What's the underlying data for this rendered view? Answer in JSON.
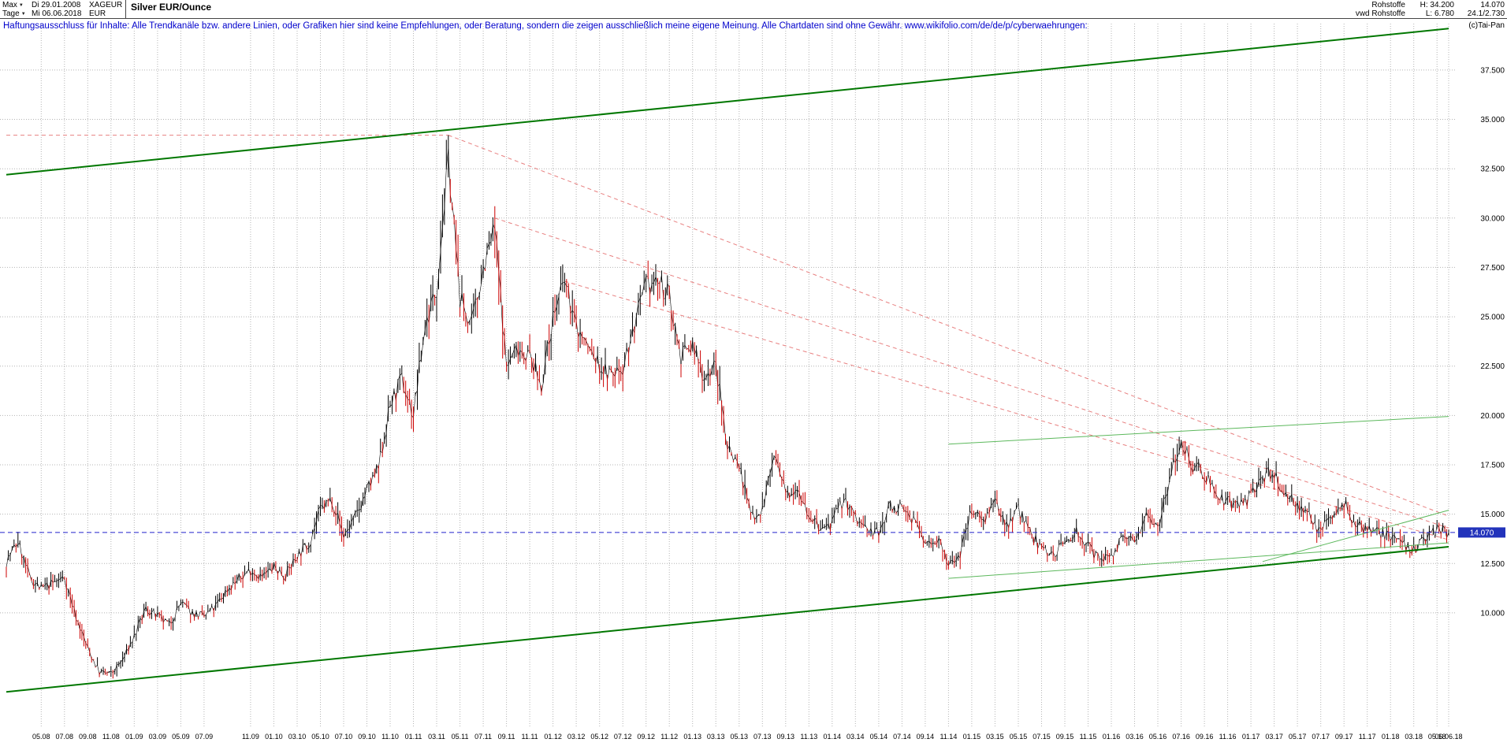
{
  "header": {
    "range_label": "Max",
    "period_label": "Tage",
    "start_date": "Di 29.01.2008",
    "end_date": "Mi 06.06.2018",
    "symbol": "XAGEUR",
    "currency": "EUR",
    "title": "Silver EUR/Ounce",
    "category": "Rohstoffe",
    "feed": "vwd Rohstoffe",
    "high": "H: 34.200",
    "low": "L: 6.780",
    "last": "14.070",
    "secondary_value": "24.1/2.730",
    "copyright": "(c)Tai-Pan"
  },
  "disclaimer": "Haftungsausschluss für Inhalte: Alle Trendkanäle bzw. andere Linien, oder Grafiken hier sind keine Empfehlungen, oder Beratung, sondern die zeigen ausschließlich meine eigene Meinung. Alle Chartdaten sind ohne Gewähr.  www.wikifolio.com/de/de/p/cyberwaehrungen:",
  "chart_data": {
    "type": "candlestick",
    "title": "Silver EUR/Ounce",
    "xlabel": "",
    "ylabel": "EUR",
    "grid": true,
    "legend": "none",
    "x_start_month": "2008-02",
    "x_end_month": "2018-06",
    "ylim": [
      4.25,
      39.85
    ],
    "y_ticks": [
      {
        "label": "37.500",
        "v": 37.5
      },
      {
        "label": "35.000",
        "v": 35.0
      },
      {
        "label": "32.500",
        "v": 32.5
      },
      {
        "label": "30.000",
        "v": 30.0
      },
      {
        "label": "27.500",
        "v": 27.5
      },
      {
        "label": "25.000",
        "v": 25.0
      },
      {
        "label": "22.500",
        "v": 22.5
      },
      {
        "label": "20.000",
        "v": 20.0
      },
      {
        "label": "17.500",
        "v": 17.5
      },
      {
        "label": "15.000",
        "v": 15.0
      },
      {
        "label": "12.500",
        "v": 12.5
      },
      {
        "label": "10.000",
        "v": 10.0
      }
    ],
    "x_ticks": [
      {
        "label": "05.08",
        "m": "2008-05"
      },
      {
        "label": "07.08",
        "m": "2008-07"
      },
      {
        "label": "09.08",
        "m": "2008-09"
      },
      {
        "label": "11.08",
        "m": "2008-11"
      },
      {
        "label": "01.09",
        "m": "2009-01"
      },
      {
        "label": "03.09",
        "m": "2009-03"
      },
      {
        "label": "05.09",
        "m": "2009-05"
      },
      {
        "label": "07.09",
        "m": "2009-07"
      },
      {
        "label": "11.09",
        "m": "2009-11"
      },
      {
        "label": "01.10",
        "m": "2010-01"
      },
      {
        "label": "03.10",
        "m": "2010-03"
      },
      {
        "label": "05.10",
        "m": "2010-05"
      },
      {
        "label": "07.10",
        "m": "2010-07"
      },
      {
        "label": "09.10",
        "m": "2010-09"
      },
      {
        "label": "11.10",
        "m": "2010-11"
      },
      {
        "label": "01.11",
        "m": "2011-01"
      },
      {
        "label": "03.11",
        "m": "2011-03"
      },
      {
        "label": "05.11",
        "m": "2011-05"
      },
      {
        "label": "07.11",
        "m": "2011-07"
      },
      {
        "label": "09.11",
        "m": "2011-09"
      },
      {
        "label": "11.11",
        "m": "2011-11"
      },
      {
        "label": "01.12",
        "m": "2012-01"
      },
      {
        "label": "03.12",
        "m": "2012-03"
      },
      {
        "label": "05.12",
        "m": "2012-05"
      },
      {
        "label": "07.12",
        "m": "2012-07"
      },
      {
        "label": "09.12",
        "m": "2012-09"
      },
      {
        "label": "11.12",
        "m": "2012-11"
      },
      {
        "label": "01.13",
        "m": "2013-01"
      },
      {
        "label": "03.13",
        "m": "2013-03"
      },
      {
        "label": "05.13",
        "m": "2013-05"
      },
      {
        "label": "07.13",
        "m": "2013-07"
      },
      {
        "label": "09.13",
        "m": "2013-09"
      },
      {
        "label": "11.13",
        "m": "2013-11"
      },
      {
        "label": "01.14",
        "m": "2014-01"
      },
      {
        "label": "03.14",
        "m": "2014-03"
      },
      {
        "label": "05.14",
        "m": "2014-05"
      },
      {
        "label": "07.14",
        "m": "2014-07"
      },
      {
        "label": "09.14",
        "m": "2014-09"
      },
      {
        "label": "11.14",
        "m": "2014-11"
      },
      {
        "label": "01.15",
        "m": "2015-01"
      },
      {
        "label": "03.15",
        "m": "2015-03"
      },
      {
        "label": "05.15",
        "m": "2015-05"
      },
      {
        "label": "07.15",
        "m": "2015-07"
      },
      {
        "label": "09.15",
        "m": "2015-09"
      },
      {
        "label": "11.15",
        "m": "2015-11"
      },
      {
        "label": "01.16",
        "m": "2016-01"
      },
      {
        "label": "03.16",
        "m": "2016-03"
      },
      {
        "label": "05.16",
        "m": "2016-05"
      },
      {
        "label": "07.16",
        "m": "2016-07"
      },
      {
        "label": "09.16",
        "m": "2016-09"
      },
      {
        "label": "11.16",
        "m": "2016-11"
      },
      {
        "label": "01.17",
        "m": "2017-01"
      },
      {
        "label": "03.17",
        "m": "2017-03"
      },
      {
        "label": "05.17",
        "m": "2017-05"
      },
      {
        "label": "07.17",
        "m": "2017-07"
      },
      {
        "label": "09.17",
        "m": "2017-09"
      },
      {
        "label": "11.17",
        "m": "2017-11"
      },
      {
        "label": "01.18",
        "m": "2018-01"
      },
      {
        "label": "03.18",
        "m": "2018-03"
      },
      {
        "label": "05.18",
        "m": "2018-05"
      },
      {
        "label": "06.06.18",
        "m": "2018-06"
      }
    ],
    "monthly_close": [
      12.6,
      13.6,
      11.8,
      11.2,
      11.5,
      11.8,
      9.8,
      8.2,
      7.0,
      6.9,
      7.6,
      8.8,
      10.2,
      9.8,
      9.4,
      10.5,
      10.0,
      9.8,
      10.3,
      11.2,
      11.7,
      12.2,
      11.8,
      12.3,
      11.9,
      12.9,
      13.5,
      15.2,
      15.8,
      13.9,
      14.8,
      16.2,
      17.3,
      20.5,
      21.8,
      20.0,
      24.5,
      26.5,
      33.0,
      26.0,
      24.5,
      27.5,
      29.5,
      22.5,
      23.5,
      23.0,
      21.5,
      25.0,
      26.8,
      24.5,
      23.5,
      22.5,
      22.0,
      22.5,
      24.5,
      26.5,
      26.8,
      26.0,
      23.0,
      23.5,
      22.0,
      22.5,
      18.5,
      17.5,
      15.0,
      15.2,
      18.0,
      16.0,
      16.5,
      15.0,
      14.2,
      14.5,
      15.8,
      14.8,
      14.2,
      14.0,
      15.5,
      15.2,
      14.8,
      13.5,
      13.8,
      12.4,
      13.0,
      15.3,
      14.8,
      15.5,
      14.5,
      15.3,
      14.0,
      13.3,
      13.0,
      13.5,
      14.2,
      13.3,
      12.7,
      13.0,
      13.7,
      13.6,
      15.2,
      14.4,
      16.8,
      18.8,
      17.5,
      17.1,
      16.1,
      15.6,
      15.3,
      15.9,
      17.0,
      17.0,
      16.0,
      15.5,
      14.8,
      14.2,
      15.0,
      15.6,
      14.4,
      14.3,
      14.1,
      13.9,
      13.4,
      13.3,
      13.7,
      14.2,
      14.07
    ],
    "high_marker": {
      "m": "2011-04",
      "v": 34.2
    },
    "low_marker": {
      "m": "2008-11",
      "v": 6.78
    },
    "current_price": {
      "v": 14.07,
      "label": "14.070"
    },
    "trend_lines": [
      {
        "name": "channel-top",
        "color": "#007700",
        "width": 2,
        "from": {
          "m": "2008-02",
          "v": 32.2
        },
        "to": {
          "m": "2018-06",
          "v": 39.6
        }
      },
      {
        "name": "channel-bottom",
        "color": "#007700",
        "width": 2,
        "from": {
          "m": "2008-02",
          "v": 6.0
        },
        "to": {
          "m": "2018-06",
          "v": 13.35
        }
      },
      {
        "name": "minor-resistance",
        "color": "#5cb85c",
        "width": 1,
        "from": {
          "m": "2014-11",
          "v": 18.55
        },
        "to": {
          "m": "2018-06",
          "v": 19.95
        }
      },
      {
        "name": "minor-support-long",
        "color": "#5cb85c",
        "width": 1,
        "from": {
          "m": "2014-11",
          "v": 11.75
        },
        "to": {
          "m": "2018-06",
          "v": 13.55
        }
      },
      {
        "name": "minor-support-steep",
        "color": "#5cb85c",
        "width": 1,
        "from": {
          "m": "2017-02",
          "v": 12.6
        },
        "to": {
          "m": "2018-06",
          "v": 15.2
        }
      }
    ],
    "resistance_lines": [
      {
        "name": "ath-level",
        "from": {
          "m": "2008-02",
          "v": 34.2
        },
        "to": {
          "m": "2011-04",
          "v": 34.2
        }
      },
      {
        "name": "downtrend-1",
        "from": {
          "m": "2011-04",
          "v": 34.2
        },
        "to": {
          "m": "2018-06",
          "v": 14.9
        }
      },
      {
        "name": "downtrend-2",
        "from": {
          "m": "2011-08",
          "v": 30.0
        },
        "to": {
          "m": "2018-06",
          "v": 14.3
        }
      },
      {
        "name": "downtrend-3",
        "from": {
          "m": "2012-02",
          "v": 26.8
        },
        "to": {
          "m": "2018-06",
          "v": 13.7
        }
      }
    ],
    "colors": {
      "up": "#000000",
      "down": "#cc0000",
      "grid": "#b4b4b4",
      "trend_major": "#007700",
      "trend_minor": "#5cb85c",
      "resistance": "#e88080",
      "current_line": "#2222cc",
      "current_tag_bg": "#2233bb",
      "current_tag_text": "#ffffff",
      "disclaimer": "#0000cc"
    }
  }
}
